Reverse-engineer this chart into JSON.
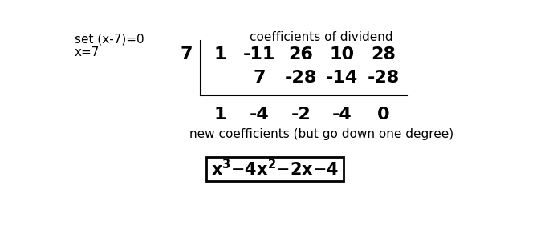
{
  "top_left_line1": "set (x-7)=0",
  "top_left_line2": "x=7",
  "header_label": "coefficients of dividend",
  "divisor": "7",
  "row1": [
    "1",
    "-11",
    "26",
    "10",
    "28"
  ],
  "row2": [
    "",
    "7",
    "-28",
    "-14",
    "-28"
  ],
  "row3": [
    "1",
    "-4",
    "-2",
    "-4",
    "0"
  ],
  "bottom_label": "new coefficients (but go down one degree)",
  "bg_color": "#ffffff",
  "text_color": "#000000",
  "font_size_topleft": 11,
  "font_size_header": 11,
  "font_size_divisor": 16,
  "font_size_table": 16,
  "font_size_bottom": 11,
  "font_size_result": 15
}
